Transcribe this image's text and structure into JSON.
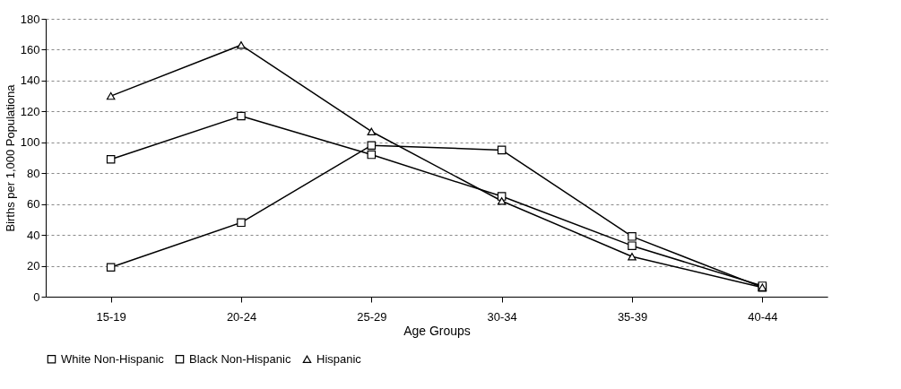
{
  "chart_data": {
    "type": "line",
    "xlabel": "Age Groups",
    "ylabel": "Births per 1,000 Populationa",
    "categories": [
      "15-19",
      "20-24",
      "25-29",
      "30-34",
      "35-39",
      "40-44"
    ],
    "series": [
      {
        "name": "White Non-Hispanic",
        "color": "#000000",
        "marker": "square",
        "values": [
          19,
          48,
          98,
          95,
          39,
          6
        ]
      },
      {
        "name": "Black Non-Hispanic",
        "color": "#000000",
        "marker": "square",
        "values": [
          89,
          117,
          92,
          65,
          33,
          7
        ]
      },
      {
        "name": "Hispanic",
        "color": "#000000",
        "marker": "triangle",
        "values": [
          130,
          163,
          107,
          62,
          26,
          6
        ]
      }
    ],
    "ylim": [
      0,
      180
    ],
    "yticks": [
      0,
      20,
      40,
      60,
      80,
      100,
      120,
      140,
      160,
      180
    ],
    "grid": "y",
    "legend": "bottom"
  }
}
